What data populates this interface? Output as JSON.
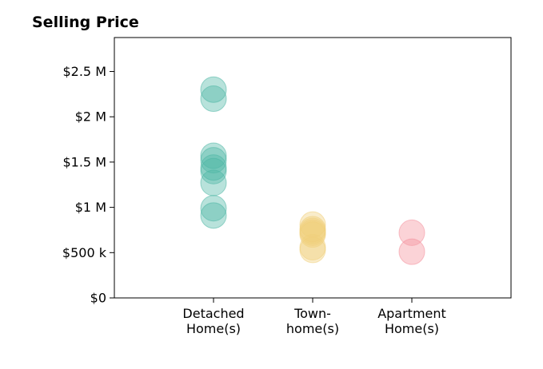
{
  "chart_data": {
    "type": "scatter",
    "title": "Selling Price",
    "xlabel": "",
    "ylabel": "",
    "ylim": [
      0,
      2875000
    ],
    "y_ticks": [
      {
        "value": 0,
        "label": "$0"
      },
      {
        "value": 500000,
        "label": "$500 k"
      },
      {
        "value": 1000000,
        "label": "$1 M"
      },
      {
        "value": 1500000,
        "label": "$1.5 M"
      },
      {
        "value": 2000000,
        "label": "$2 M"
      },
      {
        "value": 2500000,
        "label": "$2.5 M"
      }
    ],
    "categories": [
      {
        "lines": [
          "Detached",
          "Home(s)"
        ]
      },
      {
        "lines": [
          "Town-",
          "home(s)"
        ]
      },
      {
        "lines": [
          "Apartment",
          "Home(s)"
        ]
      }
    ],
    "series": [
      {
        "category_index": 0,
        "color": "#4db6a4",
        "values": [
          2300000,
          2200000,
          1570000,
          1520000,
          1440000,
          1400000,
          1270000,
          990000,
          910000
        ]
      },
      {
        "category_index": 1,
        "color": "#f0cf7a",
        "values": [
          810000,
          760000,
          740000,
          720000,
          700000,
          560000,
          530000
        ]
      },
      {
        "category_index": 2,
        "color": "#f4909c",
        "values": [
          720000,
          510000
        ]
      }
    ],
    "grid": false,
    "marker_opacity": 0.4
  }
}
